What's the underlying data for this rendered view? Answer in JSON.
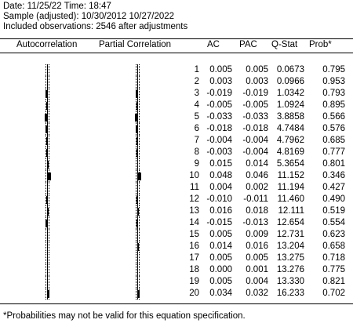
{
  "header": {
    "date_line": "Date: 11/25/22   Time: 18:47",
    "sample_line": "Sample (adjusted): 10/30/2012 10/27/2022",
    "obs_line": "Included observations: 2546 after adjustments"
  },
  "columns": {
    "autocorrelation": "Autocorrelation",
    "partial_correlation": "Partial Correlation",
    "ac": "AC",
    "pac": "PAC",
    "q_stat": "Q-Stat",
    "prob": "Prob*"
  },
  "rows": [
    {
      "lag": "1",
      "ac": "0.005",
      "pac": "0.005",
      "q": "0.0673",
      "prob": "0.795"
    },
    {
      "lag": "2",
      "ac": "0.003",
      "pac": "0.003",
      "q": "0.0966",
      "prob": "0.953"
    },
    {
      "lag": "3",
      "ac": "-0.019",
      "pac": "-0.019",
      "q": "1.0342",
      "prob": "0.793"
    },
    {
      "lag": "4",
      "ac": "-0.005",
      "pac": "-0.005",
      "q": "1.0924",
      "prob": "0.895"
    },
    {
      "lag": "5",
      "ac": "-0.033",
      "pac": "-0.033",
      "q": "3.8858",
      "prob": "0.566"
    },
    {
      "lag": "6",
      "ac": "-0.018",
      "pac": "-0.018",
      "q": "4.7484",
      "prob": "0.576"
    },
    {
      "lag": "7",
      "ac": "-0.004",
      "pac": "-0.004",
      "q": "4.7962",
      "prob": "0.685"
    },
    {
      "lag": "8",
      "ac": "-0.003",
      "pac": "-0.004",
      "q": "4.8169",
      "prob": "0.777"
    },
    {
      "lag": "9",
      "ac": "0.015",
      "pac": "0.014",
      "q": "5.3654",
      "prob": "0.801"
    },
    {
      "lag": "10",
      "ac": "0.048",
      "pac": "0.046",
      "q": "11.152",
      "prob": "0.346"
    },
    {
      "lag": "11",
      "ac": "0.004",
      "pac": "0.002",
      "q": "11.194",
      "prob": "0.427"
    },
    {
      "lag": "12",
      "ac": "-0.010",
      "pac": "-0.011",
      "q": "11.460",
      "prob": "0.490"
    },
    {
      "lag": "13",
      "ac": "0.016",
      "pac": "0.018",
      "q": "12.111",
      "prob": "0.519"
    },
    {
      "lag": "14",
      "ac": "-0.015",
      "pac": "-0.013",
      "q": "12.654",
      "prob": "0.554"
    },
    {
      "lag": "15",
      "ac": "0.005",
      "pac": "0.009",
      "q": "12.731",
      "prob": "0.623"
    },
    {
      "lag": "16",
      "ac": "0.014",
      "pac": "0.016",
      "q": "13.204",
      "prob": "0.658"
    },
    {
      "lag": "17",
      "ac": "0.005",
      "pac": "0.005",
      "q": "13.275",
      "prob": "0.718"
    },
    {
      "lag": "18",
      "ac": "0.000",
      "pac": "0.001",
      "q": "13.276",
      "prob": "0.775"
    },
    {
      "lag": "19",
      "ac": "0.005",
      "pac": "0.004",
      "q": "13.330",
      "prob": "0.821"
    },
    {
      "lag": "20",
      "ac": "0.034",
      "pac": "0.032",
      "q": "16.233",
      "prob": "0.702"
    }
  ],
  "footnote": "*Probabilities may not be valid for this equation specification."
}
